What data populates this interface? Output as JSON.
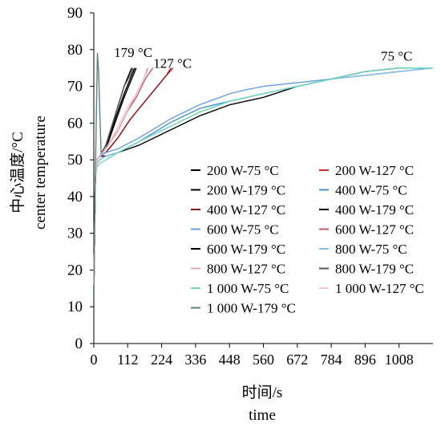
{
  "chart_data": {
    "type": "line",
    "xlabel_cn": "时间/s",
    "xlabel_en": "time",
    "ylabel_cn": "中心温度/°C",
    "ylabel_en": "center temperature",
    "xlim": [
      0,
      1120
    ],
    "ylim": [
      0,
      90
    ],
    "x_ticks": [
      0,
      112,
      224,
      336,
      448,
      560,
      672,
      784,
      896,
      1008
    ],
    "y_ticks": [
      0,
      10,
      20,
      30,
      40,
      50,
      60,
      70,
      80,
      90
    ],
    "annotations": [
      {
        "text": "179 °C",
        "x": 130,
        "y": 78
      },
      {
        "text": "127 °C",
        "x": 260,
        "y": 75
      },
      {
        "text": "75 °C",
        "x": 1000,
        "y": 77
      }
    ],
    "series": [
      {
        "name": "200 W-75 °C",
        "color": "#000000",
        "x": [
          0,
          5,
          10,
          20,
          40,
          80,
          150,
          250,
          350,
          450,
          560,
          672,
          784,
          896,
          1008,
          1120
        ],
        "y": [
          13,
          45,
          50,
          51,
          51,
          52,
          54,
          58,
          62,
          65,
          67,
          70,
          72,
          74,
          75,
          75
        ]
      },
      {
        "name": "200 W-127 °C",
        "color": "#d62a2a",
        "x": [
          0,
          5,
          10,
          20,
          40,
          80,
          120,
          160,
          200,
          240,
          262
        ],
        "y": [
          13,
          45,
          50,
          51,
          52,
          56,
          61,
          65,
          69,
          73,
          75
        ]
      },
      {
        "name": "200 W-179 °C",
        "color": "#000000",
        "x": [
          0,
          5,
          10,
          20,
          40,
          70,
          100,
          125,
          140
        ],
        "y": [
          13,
          45,
          50,
          51,
          53,
          60,
          67,
          72,
          75
        ]
      },
      {
        "name": "400 W-75 °C",
        "color": "#4a90d9",
        "x": [
          0,
          5,
          10,
          20,
          40,
          80,
          150,
          250,
          350,
          450,
          560,
          672,
          784,
          896,
          1008,
          1120
        ],
        "y": [
          13,
          45,
          49,
          50,
          51,
          52,
          55,
          60,
          64,
          66,
          68,
          70,
          72,
          73,
          74,
          75
        ]
      },
      {
        "name": "400 W-127 °C",
        "color": "#8b1a1a",
        "x": [
          0,
          5,
          10,
          20,
          40,
          80,
          120,
          160,
          200,
          240,
          255
        ],
        "y": [
          13,
          45,
          50,
          51,
          52,
          56,
          61,
          65,
          69,
          73,
          75
        ]
      },
      {
        "name": "400 W-179 °C",
        "color": "#000000",
        "x": [
          0,
          5,
          10,
          20,
          40,
          70,
          100,
          125,
          135
        ],
        "y": [
          13,
          45,
          50,
          51,
          53,
          61,
          68,
          73,
          75
        ]
      },
      {
        "name": "600 W-75 °C",
        "color": "#6a9fe0",
        "x": [
          0,
          5,
          10,
          20,
          40,
          80,
          150,
          250,
          350,
          450,
          500,
          560,
          672,
          784,
          896,
          1008,
          1120
        ],
        "y": [
          13,
          45,
          50,
          51,
          52,
          53,
          56,
          61,
          65,
          68,
          69,
          70,
          71,
          72,
          73,
          74,
          75
        ]
      },
      {
        "name": "600 W-127 °C",
        "color": "#c45b6e",
        "x": [
          0,
          5,
          10,
          20,
          40,
          80,
          110,
          140,
          170,
          195
        ],
        "y": [
          13,
          45,
          50,
          51,
          53,
          58,
          63,
          67,
          72,
          75
        ]
      },
      {
        "name": "600 W-179 °C",
        "color": "#000000",
        "x": [
          0,
          5,
          10,
          20,
          40,
          70,
          100,
          115,
          125
        ],
        "y": [
          13,
          45,
          50,
          51,
          54,
          62,
          70,
          73,
          75
        ]
      },
      {
        "name": "800 W-75 °C",
        "color": "#87bfe6",
        "x": [
          0,
          5,
          10,
          20,
          40,
          80,
          150,
          250,
          350,
          450,
          560,
          672,
          784,
          896,
          1008,
          1120
        ],
        "y": [
          13,
          45,
          49,
          50,
          51,
          52,
          55,
          59,
          63,
          66,
          68,
          70,
          72,
          73,
          74,
          75
        ]
      },
      {
        "name": "800 W-127 °C",
        "color": "#e6a3b0",
        "x": [
          0,
          5,
          10,
          20,
          40,
          80,
          110,
          140,
          165,
          180
        ],
        "y": [
          13,
          45,
          50,
          51,
          53,
          58,
          63,
          68,
          72,
          75
        ]
      },
      {
        "name": "800 W-179 °C",
        "color": "#555555",
        "x": [
          0,
          5,
          10,
          20,
          40,
          70,
          100,
          120,
          130
        ],
        "y": [
          13,
          45,
          50,
          51,
          54,
          62,
          70,
          73,
          75
        ]
      },
      {
        "name": "1 000 W-75 °C",
        "color": "#6fd6c0",
        "x": [
          0,
          5,
          10,
          20,
          40,
          80,
          150,
          250,
          350,
          450,
          560,
          672,
          784,
          896,
          1008,
          1120
        ],
        "y": [
          13,
          45,
          48,
          49,
          50,
          52,
          55,
          59,
          63,
          66,
          68,
          70,
          72,
          74,
          75,
          75
        ]
      },
      {
        "name": "1 000 W-127 °C",
        "color": "#f0c8d0",
        "x": [
          0,
          5,
          10,
          20,
          40,
          80,
          110,
          140,
          165,
          175
        ],
        "y": [
          13,
          45,
          50,
          51,
          53,
          59,
          64,
          68,
          72,
          75
        ]
      },
      {
        "name": "1 000 W-179 °C",
        "color": "#5f7f7f",
        "x": [
          0,
          4,
          8,
          12,
          16,
          20,
          24
        ],
        "y": [
          13,
          40,
          60,
          79,
          74,
          62,
          52
        ]
      }
    ]
  }
}
